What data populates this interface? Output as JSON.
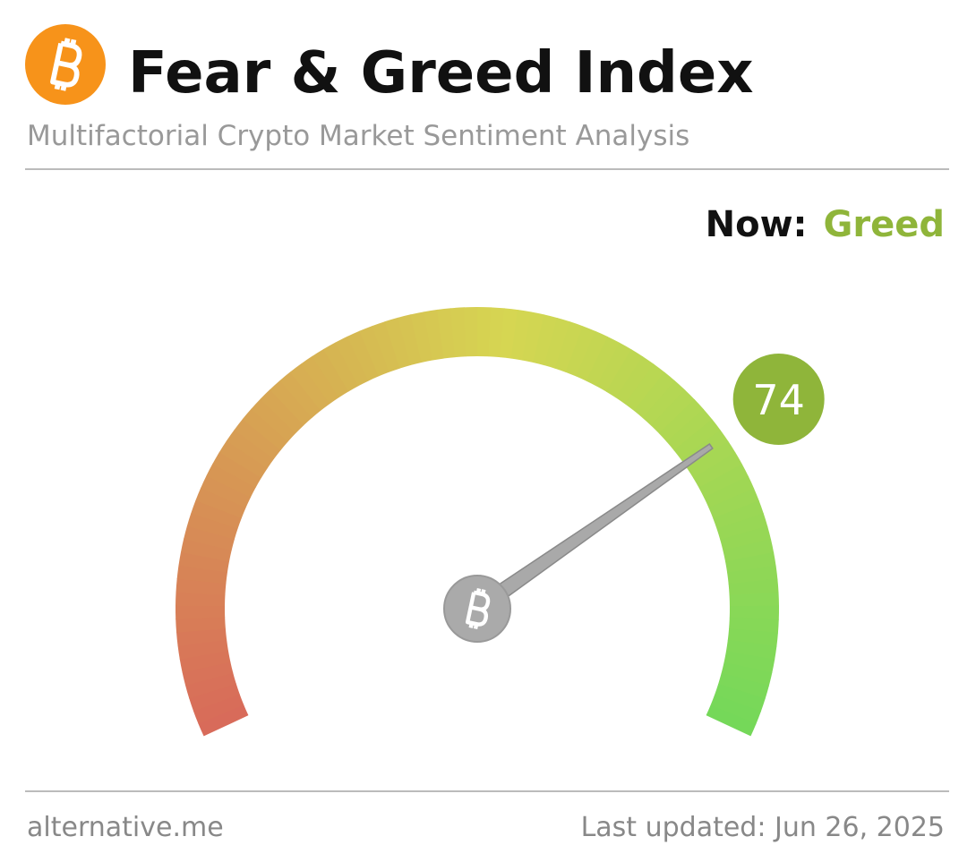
{
  "chart_data": {
    "type": "gauge",
    "title": "Fear & Greed Index",
    "subtitle": "Multifactorial Crypto Market Sentiment Analysis",
    "now_label": "Now:",
    "classification": "Greed",
    "value": 74,
    "color": "#8fb53a",
    "ylim": [
      0,
      100
    ],
    "source": "alternative.me",
    "last_updated": "Last updated: Jun 26, 2025"
  }
}
